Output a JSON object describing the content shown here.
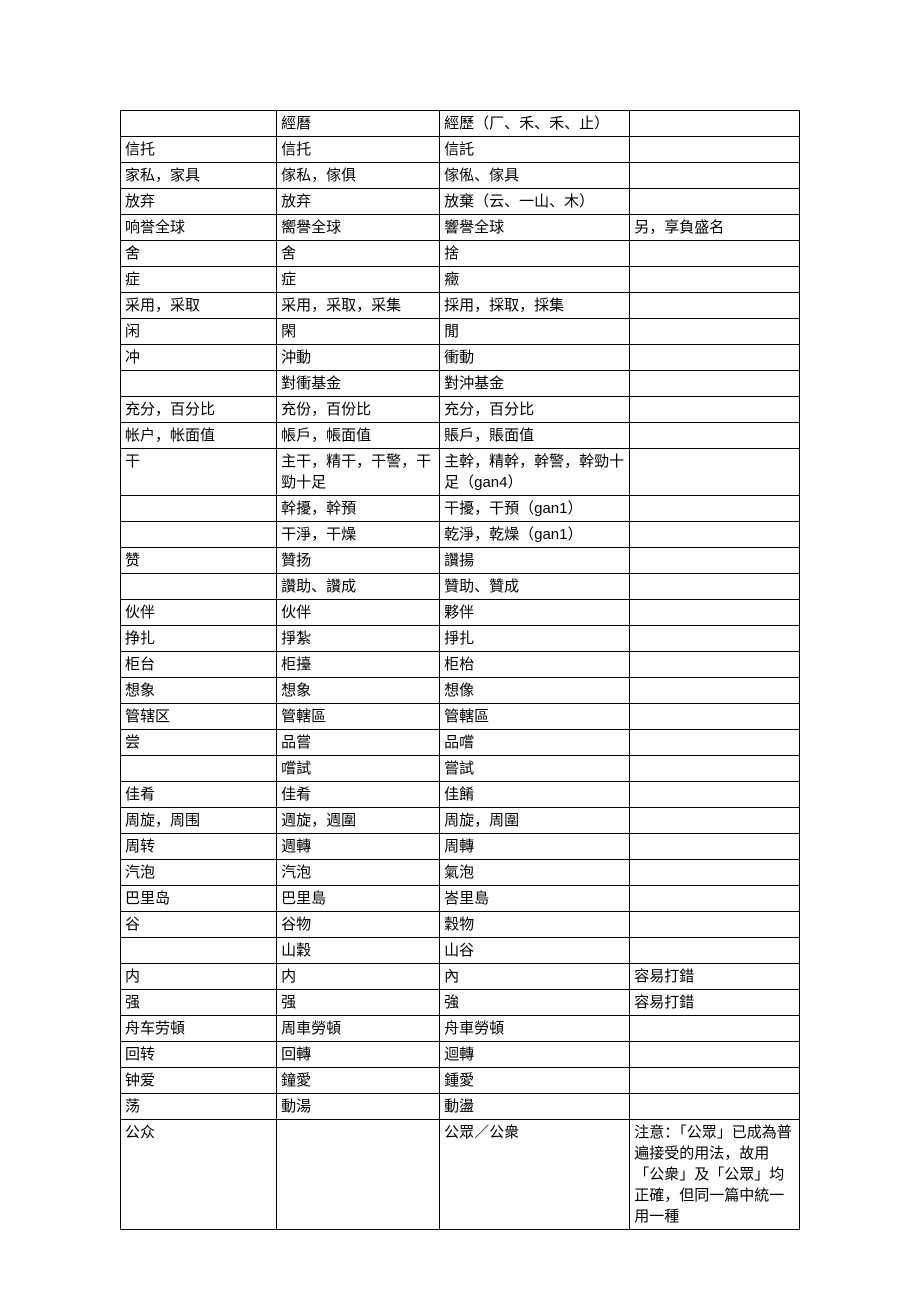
{
  "table": {
    "rows": [
      [
        "",
        "經曆",
        "經歷（厂、禾、禾、止）",
        ""
      ],
      [
        "信托",
        "信托",
        "信託",
        ""
      ],
      [
        "家私，家具",
        "傢私，傢俱",
        "傢俬、傢具",
        ""
      ],
      [
        "放弃",
        "放弃",
        "放棄（云、一山、木）",
        ""
      ],
      [
        "响誉全球",
        "嚮譽全球",
        "響譽全球",
        "另，享負盛名"
      ],
      [
        "舍",
        "舍",
        "捨",
        ""
      ],
      [
        "症",
        "症",
        "癥",
        ""
      ],
      [
        "采用，采取",
        "采用，采取，采集",
        "採用，採取，採集",
        ""
      ],
      [
        "闲",
        "閑",
        "閒",
        ""
      ],
      [
        "冲",
        "沖動",
        "衝動",
        ""
      ],
      [
        "",
        "對衝基金",
        "對沖基金",
        ""
      ],
      [
        "充分，百分比",
        "充份，百份比",
        "充分，百分比",
        ""
      ],
      [
        "帐户，帐面值",
        "帳戶，帳面值",
        "賬戶，賬面值",
        ""
      ],
      [
        "干",
        "主干，精干，干警，干勁十足",
        "主幹，精幹，幹警，幹勁十足（gan4）",
        ""
      ],
      [
        "",
        "幹擾，幹預",
        "干擾，干預（gan1）",
        ""
      ],
      [
        "",
        "干淨，干燥",
        "乾淨，乾燥（gan1）",
        ""
      ],
      [
        "赞",
        "贊扬",
        "讚揚",
        ""
      ],
      [
        "",
        "讚助、讚成",
        "贊助、贊成",
        ""
      ],
      [
        "伙伴",
        "伙伴",
        "夥伴",
        ""
      ],
      [
        "挣扎",
        "掙紮",
        "掙扎",
        ""
      ],
      [
        "柜台",
        "柜擡",
        "柜枱",
        ""
      ],
      [
        "想象",
        "想象",
        "想像",
        ""
      ],
      [
        "管辖区",
        "管轄區",
        "管轄區",
        ""
      ],
      [
        "尝",
        "品嘗",
        "品嚐",
        ""
      ],
      [
        "",
        "嚐試",
        "嘗試",
        ""
      ],
      [
        "佳肴",
        "佳肴",
        "佳餚",
        ""
      ],
      [
        "周旋，周围",
        "週旋，週圍",
        "周旋，周圍",
        ""
      ],
      [
        "周转",
        "週轉",
        "周轉",
        ""
      ],
      [
        "汽泡",
        "汽泡",
        "氣泡",
        ""
      ],
      [
        "巴里岛",
        "巴里島",
        "峇里島",
        ""
      ],
      [
        "谷",
        "谷物",
        "穀物",
        ""
      ],
      [
        "",
        "山穀",
        "山谷",
        ""
      ],
      [
        "内",
        "内",
        "內",
        "容易打錯"
      ],
      [
        "强",
        "强",
        "強",
        "容易打錯"
      ],
      [
        "舟车劳頓",
        "周車勞頓",
        "舟車勞頓",
        ""
      ],
      [
        "回转",
        "回轉",
        "迴轉",
        ""
      ],
      [
        "钟爱",
        "鐘愛",
        "鍾愛",
        ""
      ],
      [
        "荡",
        "動湯",
        "動盪",
        ""
      ],
      [
        "公众",
        "",
        "公眾／公衆",
        "注意：「公眾」已成為普遍接受的用法，故用「公衆」及「公眾」均正確，但同一篇中統一用一種"
      ]
    ]
  }
}
